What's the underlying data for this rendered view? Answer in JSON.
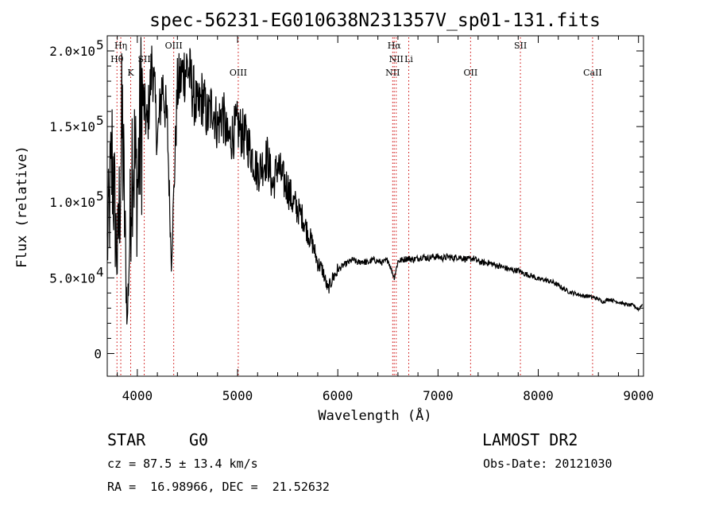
{
  "chart_data": {
    "type": "line",
    "title": "spec-56231-EG010638N231357V_sp01-131.fits",
    "xlabel": "Wavelength (Å)",
    "ylabel": "Flux (relative)",
    "xlim": [
      3700,
      9050
    ],
    "ylim": [
      -15000,
      210000
    ],
    "xticks": [
      4000,
      5000,
      6000,
      7000,
      8000,
      9000
    ],
    "xtick_labels": [
      "4000",
      "5000",
      "6000",
      "7000",
      "8000",
      "9000"
    ],
    "yticks": [
      0,
      50000,
      100000,
      150000,
      200000
    ],
    "ytick_labels": [
      {
        "m": "0",
        "e": ""
      },
      {
        "m": "5.0×10",
        "e": "4"
      },
      {
        "m": "1.0×10",
        "e": "5"
      },
      {
        "m": "1.5×10",
        "e": "5"
      },
      {
        "m": "2.0×10",
        "e": "5"
      }
    ],
    "spectrum": {
      "color": "#000000",
      "x": [
        3700,
        3750,
        3800,
        3850,
        3900,
        3950,
        4000,
        4050,
        4100,
        4150,
        4200,
        4250,
        4300,
        4340,
        4400,
        4450,
        4500,
        4550,
        4600,
        4650,
        4700,
        4750,
        4800,
        4850,
        4900,
        4950,
        5000,
        5050,
        5100,
        5150,
        5200,
        5250,
        5300,
        5350,
        5400,
        5450,
        5500,
        5550,
        5600,
        5650,
        5700,
        5750,
        5800,
        5850,
        5900,
        5950,
        6000,
        6050,
        6100,
        6150,
        6200,
        6250,
        6300,
        6350,
        6400,
        6450,
        6500,
        6563,
        6600,
        6650,
        6700,
        6750,
        6800,
        6850,
        6900,
        6950,
        7000,
        7050,
        7100,
        7150,
        7200,
        7250,
        7300,
        7350,
        7400,
        7450,
        7500,
        7550,
        7600,
        7650,
        7700,
        7750,
        7800,
        7850,
        7900,
        7950,
        8000,
        8050,
        8100,
        8150,
        8200,
        8250,
        8300,
        8350,
        8400,
        8450,
        8500,
        8550,
        8600,
        8650,
        8700,
        8750,
        8800,
        8850,
        8900,
        8950,
        9000,
        9040
      ],
      "y": [
        70000,
        130000,
        60000,
        150000,
        20000,
        140000,
        110000,
        170000,
        150000,
        195000,
        140000,
        180000,
        150000,
        60000,
        175000,
        185000,
        190000,
        175000,
        160000,
        170000,
        155000,
        165000,
        150000,
        160000,
        140000,
        145000,
        150000,
        145000,
        140000,
        130000,
        120000,
        125000,
        130000,
        110000,
        125000,
        115000,
        110000,
        100000,
        95000,
        90000,
        80000,
        72000,
        60000,
        55000,
        42000,
        50000,
        55000,
        58000,
        60000,
        62000,
        60000,
        61000,
        60000,
        62000,
        61000,
        60000,
        62000,
        50000,
        61000,
        62000,
        63000,
        62000,
        63000,
        64000,
        63000,
        64000,
        64000,
        63000,
        64000,
        63000,
        64000,
        63000,
        62000,
        63000,
        61000,
        60000,
        60000,
        59000,
        58000,
        57000,
        56000,
        55000,
        55000,
        53000,
        52000,
        51000,
        49000,
        49000,
        48000,
        47000,
        45000,
        43000,
        41000,
        40000,
        39000,
        38000,
        38000,
        37000,
        36000,
        34000,
        36000,
        35000,
        34000,
        33000,
        32000,
        32000,
        29000,
        33000
      ]
    },
    "lines": [
      {
        "label": "Hη",
        "x": 3835,
        "row": 0
      },
      {
        "label": "Hθ",
        "x": 3797,
        "row": 1
      },
      {
        "label": "K",
        "x": 3934,
        "row": 2
      },
      {
        "label": "SII",
        "x": 4069,
        "row": 1
      },
      {
        "label": "OIII",
        "x": 4363,
        "row": 0
      },
      {
        "label": "OIII",
        "x": 5007,
        "row": 2
      },
      {
        "label": "Hα",
        "x": 6563,
        "row": 0
      },
      {
        "label": "NII",
        "x": 6583,
        "row": 1
      },
      {
        "label": "Li",
        "x": 6708,
        "row": 1
      },
      {
        "label": "NII",
        "x": 6548,
        "row": 2
      },
      {
        "label": "OII",
        "x": 7325,
        "row": 2
      },
      {
        "label": "SII",
        "x": 7822,
        "row": 0
      },
      {
        "label": "CaII",
        "x": 8542,
        "row": 2
      }
    ],
    "line_marker_color": "#cc0000"
  },
  "info": {
    "class_label": "STAR",
    "subclass": "G0",
    "survey": "LAMOST DR2",
    "cz": "cz = 87.5 ± 13.4 km/s",
    "obs_date": "Obs-Date: 20121030",
    "coords": "RA =  16.98966, DEC =  21.52632"
  }
}
